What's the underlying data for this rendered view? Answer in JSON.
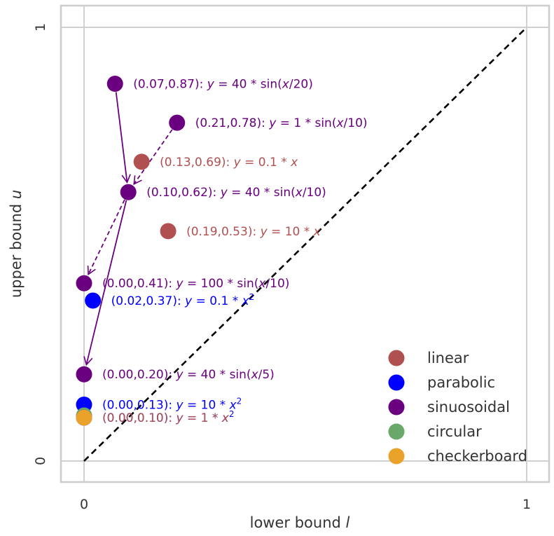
{
  "chart_data": {
    "type": "scatter",
    "title": "",
    "xlabel": "lower bound ",
    "xlabel_var": "l",
    "ylabel": "upper bound ",
    "ylabel_var": "u",
    "xlim": [
      -0.055,
      1.055
    ],
    "ylim": [
      -0.05,
      1.05
    ],
    "xticks": [
      {
        "v": 0,
        "label": "0"
      },
      {
        "v": 1,
        "label": "1"
      }
    ],
    "yticks": [
      {
        "v": 0,
        "label": "0"
      },
      {
        "v": 1,
        "label": "1"
      }
    ],
    "grid": true,
    "diagonal": {
      "from": [
        0,
        0
      ],
      "to": [
        1,
        1
      ],
      "style": "dashed",
      "color": "#000000"
    },
    "legend_position": "bottom-right",
    "colors": {
      "linear": "#b05050",
      "parabolic": "#0000ff",
      "sinuosoidal": "#6a0080",
      "circular": "#6aa86a",
      "checkerboard": "#eba22b"
    },
    "legend": [
      {
        "category": "linear",
        "label": "linear"
      },
      {
        "category": "parabolic",
        "label": "parabolic"
      },
      {
        "category": "sinuosoidal",
        "label": "sinuosoidal"
      },
      {
        "category": "circular",
        "label": "circular"
      },
      {
        "category": "checkerboard",
        "label": "checkerboard"
      }
    ],
    "points": [
      {
        "id": "p1",
        "x": 0.07,
        "y": 0.87,
        "category": "sinuosoidal",
        "coord": "(0.07,0.87): ",
        "formula": [
          [
            "y",
            true
          ],
          [
            " = 40 * sin(",
            false
          ],
          [
            "x",
            true
          ],
          [
            "/20)",
            false
          ]
        ]
      },
      {
        "id": "p2",
        "x": 0.21,
        "y": 0.78,
        "category": "sinuosoidal",
        "coord": "(0.21,0.78): ",
        "formula": [
          [
            "y",
            true
          ],
          [
            " = 1 * sin(",
            false
          ],
          [
            "x",
            true
          ],
          [
            "/10)",
            false
          ]
        ]
      },
      {
        "id": "p3",
        "x": 0.13,
        "y": 0.69,
        "category": "linear",
        "coord": "(0.13,0.69): ",
        "formula": [
          [
            "y",
            true
          ],
          [
            " = 0.1 * ",
            false
          ],
          [
            "x",
            true
          ]
        ]
      },
      {
        "id": "p4",
        "x": 0.1,
        "y": 0.62,
        "category": "sinuosoidal",
        "coord": "(0.10,0.62): ",
        "formula": [
          [
            "y",
            true
          ],
          [
            " = 40 * sin(",
            false
          ],
          [
            "x",
            true
          ],
          [
            "/10)",
            false
          ]
        ]
      },
      {
        "id": "p5",
        "x": 0.19,
        "y": 0.53,
        "category": "linear",
        "coord": "(0.19,0.53): ",
        "formula": [
          [
            "y",
            true
          ],
          [
            " = 10 * ",
            false
          ],
          [
            "x",
            true
          ]
        ]
      },
      {
        "id": "p6",
        "x": 0.0,
        "y": 0.41,
        "category": "sinuosoidal",
        "coord": "(0.00,0.41): ",
        "formula": [
          [
            "y",
            true
          ],
          [
            " = 100 * sin(",
            false
          ],
          [
            "x",
            true
          ],
          [
            "/10)",
            false
          ]
        ]
      },
      {
        "id": "p7",
        "x": 0.02,
        "y": 0.37,
        "category": "parabolic",
        "coord": "(0.02,0.37): ",
        "formula": [
          [
            "y",
            true
          ],
          [
            " = 0.1 * ",
            false
          ],
          [
            "x",
            true
          ],
          [
            "2",
            false,
            "sup"
          ]
        ]
      },
      {
        "id": "p8",
        "x": 0.0,
        "y": 0.2,
        "category": "sinuosoidal",
        "coord": "(0.00,0.20): ",
        "formula": [
          [
            "y",
            true
          ],
          [
            " = 40 * sin(",
            false
          ],
          [
            "x",
            true
          ],
          [
            "/5)",
            false
          ]
        ]
      },
      {
        "id": "p9",
        "x": 0.0,
        "y": 0.13,
        "category": "parabolic",
        "coord": "(0.00,0.13): ",
        "formula": [
          [
            "y",
            true
          ],
          [
            " = 10 * ",
            false
          ],
          [
            "x",
            true
          ],
          [
            "2",
            false,
            "sup"
          ]
        ]
      },
      {
        "id": "p10",
        "x": 0.0,
        "y": 0.105,
        "category": "circular",
        "coord": "",
        "formula": []
      },
      {
        "id": "p11",
        "x": 0.0,
        "y": 0.1,
        "category": "parabolic",
        "coord": "(0.00,0.10): ",
        "formula": [
          [
            "y",
            true
          ],
          [
            " = 1 * ",
            false
          ],
          [
            "x",
            true
          ],
          [
            "2",
            false,
            "sup"
          ]
        ]
      },
      {
        "id": "p12",
        "x": 0.0,
        "y": 0.1,
        "category": "checkerboard",
        "coord": "(0.00,0.10): ",
        "formula": [
          [
            "y",
            true
          ],
          [
            " = 1 * ",
            false
          ],
          [
            "x",
            true
          ]
        ],
        "label_color": "linear"
      }
    ],
    "arrows": [
      {
        "from": [
          0.07,
          0.87
        ],
        "to": [
          0.1,
          0.62
        ],
        "style": "solid",
        "category": "sinuosoidal"
      },
      {
        "from": [
          0.21,
          0.78
        ],
        "to": [
          0.1,
          0.62
        ],
        "style": "dashed",
        "category": "sinuosoidal"
      },
      {
        "from": [
          0.1,
          0.62
        ],
        "to": [
          0.0,
          0.41
        ],
        "style": "dashed",
        "category": "sinuosoidal"
      },
      {
        "from": [
          0.1,
          0.62
        ],
        "to": [
          0.0,
          0.2
        ],
        "style": "solid",
        "category": "sinuosoidal"
      }
    ]
  }
}
